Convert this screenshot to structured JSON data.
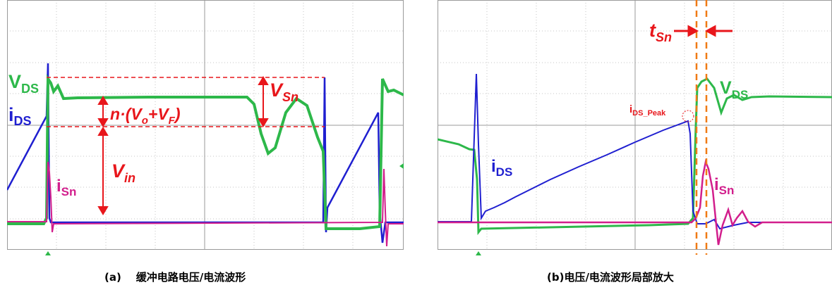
{
  "panel_a": {
    "labels": {
      "vds_main": "V",
      "vds_sub": "DS",
      "ids_main": "i",
      "ids_sub": "DS",
      "isn_main": "i",
      "isn_sub": "Sn",
      "vsn_main": "V",
      "vsn_sub": "Sn",
      "vin_main": "V",
      "vin_sub": "in",
      "formula_pre": "n·(V",
      "formula_o": "o",
      "formula_mid": "+V",
      "formula_f": "F",
      "formula_post": ")"
    },
    "caption": "(a)    缓冲电路电压/电流波形"
  },
  "panel_b": {
    "labels": {
      "vds_main": "V",
      "vds_sub": "DS",
      "ids_main": "i",
      "ids_sub": "DS",
      "isn_main": "i",
      "isn_sub": "Sn",
      "tsn_main": "t",
      "tsn_sub": "Sn",
      "peak_main": "i",
      "peak_sub": "DS_Peak"
    },
    "caption": "(b)电压/电流波形局部放大"
  },
  "colors": {
    "vds": "#2db84a",
    "ids": "#1f1fd0",
    "isn": "#d21e8c",
    "annotation": "#e8161b",
    "marker": "#f07a14",
    "grid": "#b4b4b4"
  }
}
